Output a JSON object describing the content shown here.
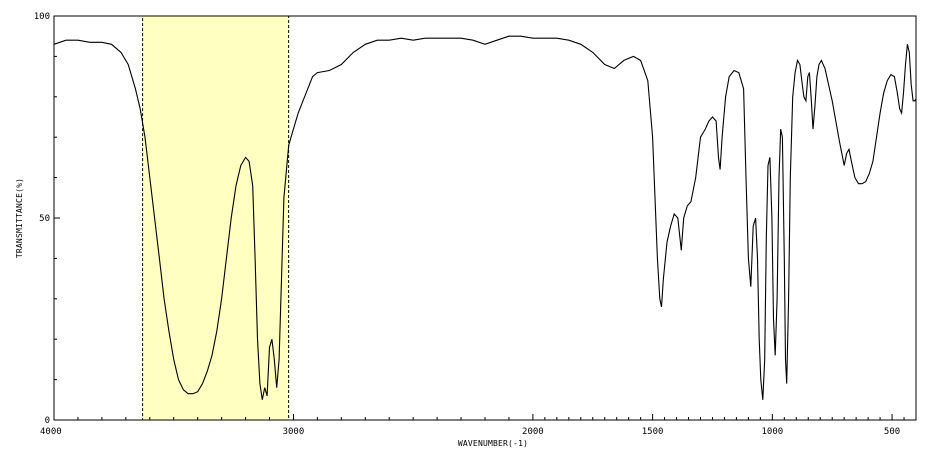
{
  "chart_data": {
    "type": "line",
    "title": "",
    "xlabel": "WAVENUMBER(-1)",
    "ylabel": "TRANSMITTANCE(%)",
    "xlim": [
      4000,
      400
    ],
    "ylim": [
      0,
      100
    ],
    "x_reversed": true,
    "grid": false,
    "x_ticks": [
      4000,
      3000,
      2000,
      1500,
      1000,
      500
    ],
    "y_ticks": [
      0,
      50,
      100
    ],
    "x_tick_labels": [
      "4000",
      "3000",
      "2000",
      "1500",
      "1000",
      "500"
    ],
    "y_tick_labels": [
      "0",
      "50",
      "100"
    ],
    "highlight": {
      "x_start": 3630,
      "x_end": 3020,
      "color": "#ffffc2",
      "border": "dashed"
    },
    "series": [
      {
        "line_color": "#000000",
        "points": [
          [
            4000,
            93
          ],
          [
            3950,
            94
          ],
          [
            3900,
            94
          ],
          [
            3850,
            93.5
          ],
          [
            3800,
            93.5
          ],
          [
            3760,
            93
          ],
          [
            3720,
            91
          ],
          [
            3690,
            88
          ],
          [
            3660,
            82
          ],
          [
            3640,
            77
          ],
          [
            3620,
            70
          ],
          [
            3600,
            60
          ],
          [
            3580,
            50
          ],
          [
            3560,
            40
          ],
          [
            3540,
            30
          ],
          [
            3520,
            22
          ],
          [
            3500,
            15
          ],
          [
            3480,
            10
          ],
          [
            3460,
            7.5
          ],
          [
            3440,
            6.5
          ],
          [
            3420,
            6.5
          ],
          [
            3400,
            7
          ],
          [
            3380,
            9
          ],
          [
            3360,
            12
          ],
          [
            3340,
            16
          ],
          [
            3320,
            22
          ],
          [
            3300,
            30
          ],
          [
            3280,
            40
          ],
          [
            3260,
            50
          ],
          [
            3240,
            58
          ],
          [
            3220,
            63
          ],
          [
            3200,
            65
          ],
          [
            3185,
            64
          ],
          [
            3170,
            58
          ],
          [
            3160,
            40
          ],
          [
            3150,
            20
          ],
          [
            3140,
            9
          ],
          [
            3130,
            5
          ],
          [
            3120,
            8
          ],
          [
            3110,
            6
          ],
          [
            3100,
            18
          ],
          [
            3090,
            20
          ],
          [
            3080,
            15
          ],
          [
            3070,
            8
          ],
          [
            3060,
            15
          ],
          [
            3050,
            35
          ],
          [
            3040,
            55
          ],
          [
            3020,
            68
          ],
          [
            3000,
            72
          ],
          [
            2980,
            76
          ],
          [
            2960,
            79
          ],
          [
            2940,
            82
          ],
          [
            2920,
            85
          ],
          [
            2900,
            86
          ],
          [
            2850,
            86.5
          ],
          [
            2800,
            88
          ],
          [
            2750,
            91
          ],
          [
            2700,
            93
          ],
          [
            2650,
            94
          ],
          [
            2600,
            94
          ],
          [
            2550,
            94.5
          ],
          [
            2500,
            94
          ],
          [
            2450,
            94.5
          ],
          [
            2400,
            94.5
          ],
          [
            2350,
            94.5
          ],
          [
            2300,
            94.5
          ],
          [
            2250,
            94
          ],
          [
            2200,
            93
          ],
          [
            2150,
            94
          ],
          [
            2100,
            95
          ],
          [
            2050,
            95
          ],
          [
            2000,
            94.5
          ],
          [
            1950,
            94.5
          ],
          [
            1900,
            94.5
          ],
          [
            1850,
            94
          ],
          [
            1800,
            93
          ],
          [
            1750,
            91
          ],
          [
            1700,
            88
          ],
          [
            1660,
            87
          ],
          [
            1620,
            89
          ],
          [
            1580,
            90
          ],
          [
            1550,
            89
          ],
          [
            1520,
            84
          ],
          [
            1500,
            70
          ],
          [
            1480,
            40
          ],
          [
            1470,
            30
          ],
          [
            1463,
            28
          ],
          [
            1455,
            35
          ],
          [
            1440,
            44
          ],
          [
            1425,
            48
          ],
          [
            1410,
            51
          ],
          [
            1395,
            50
          ],
          [
            1380,
            42
          ],
          [
            1370,
            50
          ],
          [
            1355,
            53
          ],
          [
            1340,
            54
          ],
          [
            1320,
            60
          ],
          [
            1300,
            70
          ],
          [
            1280,
            72
          ],
          [
            1265,
            74
          ],
          [
            1250,
            75
          ],
          [
            1235,
            74
          ],
          [
            1225,
            65
          ],
          [
            1218,
            62
          ],
          [
            1210,
            70
          ],
          [
            1195,
            80
          ],
          [
            1180,
            85
          ],
          [
            1160,
            86.5
          ],
          [
            1140,
            86
          ],
          [
            1120,
            82
          ],
          [
            1110,
            60
          ],
          [
            1100,
            40
          ],
          [
            1090,
            33
          ],
          [
            1080,
            48
          ],
          [
            1070,
            50
          ],
          [
            1062,
            40
          ],
          [
            1055,
            20
          ],
          [
            1048,
            10
          ],
          [
            1040,
            5
          ],
          [
            1032,
            15
          ],
          [
            1025,
            45
          ],
          [
            1018,
            63
          ],
          [
            1010,
            65
          ],
          [
            1002,
            50
          ],
          [
            995,
            25
          ],
          [
            988,
            16
          ],
          [
            980,
            30
          ],
          [
            972,
            60
          ],
          [
            965,
            72
          ],
          [
            958,
            70
          ],
          [
            950,
            40
          ],
          [
            945,
            15
          ],
          [
            940,
            9
          ],
          [
            932,
            30
          ],
          [
            925,
            60
          ],
          [
            915,
            80
          ],
          [
            905,
            86
          ],
          [
            895,
            89
          ],
          [
            885,
            88
          ],
          [
            875,
            83
          ],
          [
            868,
            80
          ],
          [
            860,
            79
          ],
          [
            852,
            85
          ],
          [
            845,
            86
          ],
          [
            838,
            80
          ],
          [
            830,
            72
          ],
          [
            822,
            78
          ],
          [
            814,
            85
          ],
          [
            805,
            88
          ],
          [
            795,
            89
          ],
          [
            780,
            87
          ],
          [
            765,
            83
          ],
          [
            750,
            79
          ],
          [
            735,
            74
          ],
          [
            720,
            69
          ],
          [
            710,
            66
          ],
          [
            700,
            63
          ],
          [
            690,
            66
          ],
          [
            680,
            67
          ],
          [
            670,
            64
          ],
          [
            655,
            60
          ],
          [
            640,
            58.5
          ],
          [
            625,
            58.5
          ],
          [
            610,
            59
          ],
          [
            595,
            61
          ],
          [
            580,
            64
          ],
          [
            565,
            70
          ],
          [
            550,
            76
          ],
          [
            535,
            81
          ],
          [
            520,
            84
          ],
          [
            505,
            85.5
          ],
          [
            490,
            85
          ],
          [
            478,
            81
          ],
          [
            468,
            77
          ],
          [
            460,
            76
          ],
          [
            452,
            81
          ],
          [
            444,
            88
          ],
          [
            436,
            93
          ],
          [
            428,
            91
          ],
          [
            420,
            83
          ],
          [
            412,
            79
          ],
          [
            405,
            79
          ],
          [
            400,
            79.5
          ]
        ]
      }
    ]
  }
}
